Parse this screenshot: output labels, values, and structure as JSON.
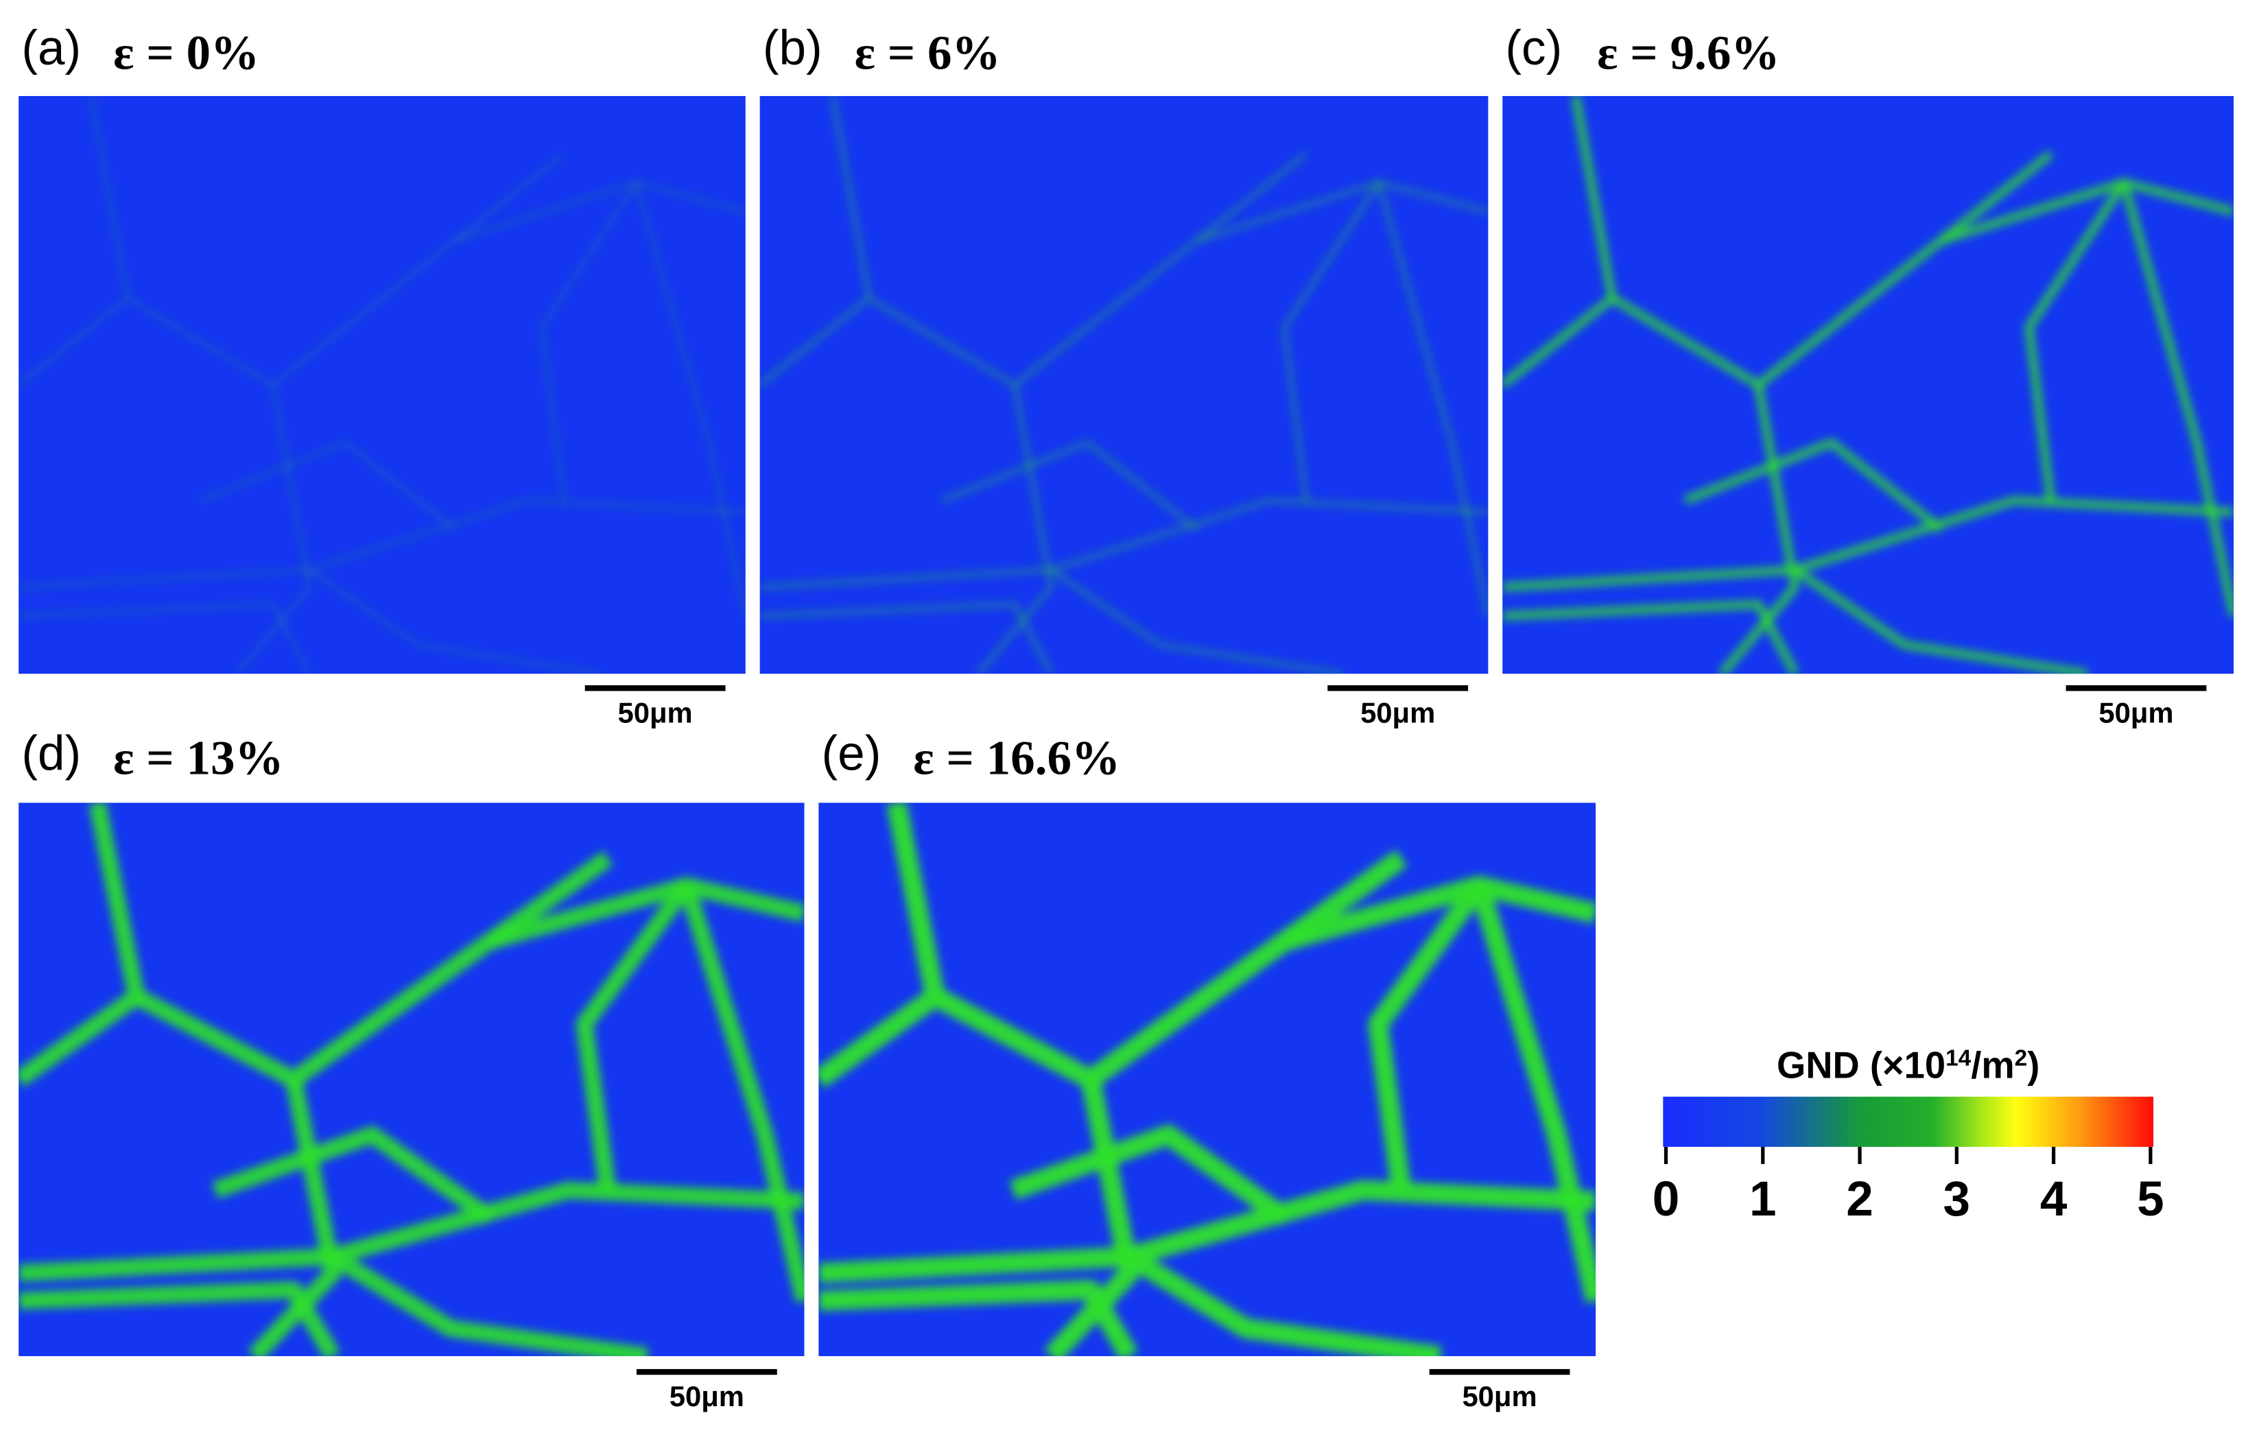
{
  "panels": [
    {
      "label": "(a)",
      "strain": "ε = 0%",
      "scale_bar": "50μm"
    },
    {
      "label": "(b)",
      "strain": "ε = 6%",
      "scale_bar": "50μm"
    },
    {
      "label": "(c)",
      "strain": "ε = 9.6%",
      "scale_bar": "50μm"
    },
    {
      "label": "(d)",
      "strain": "ε = 13%",
      "scale_bar": "50μm"
    },
    {
      "label": "(e)",
      "strain": "ε = 16.6%",
      "scale_bar": "50μm"
    }
  ],
  "colorbar": {
    "title": [
      "GND (×10",
      "14",
      "/m",
      "2",
      ")"
    ],
    "lim": [
      0,
      5
    ],
    "ticks": [
      0,
      1,
      2,
      3,
      4,
      5
    ]
  }
}
